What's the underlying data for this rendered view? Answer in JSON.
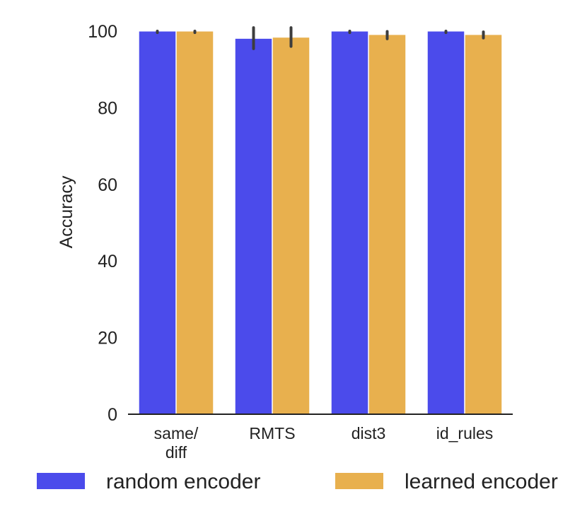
{
  "chart_data": {
    "type": "bar",
    "title": "",
    "xlabel": "",
    "ylabel": "Accuracy",
    "ylim": [
      0,
      100
    ],
    "yticks": [
      0,
      20,
      40,
      60,
      80,
      100
    ],
    "categories": [
      [
        "same/",
        "diff"
      ],
      [
        "RMTS"
      ],
      [
        "dist3"
      ],
      [
        "id_rules"
      ]
    ],
    "series": [
      {
        "name": "random encoder",
        "color": "#4b4beb",
        "values": [
          99.9,
          98.0,
          99.9,
          99.9
        ],
        "error_low": [
          99.6,
          95.4,
          99.6,
          99.6
        ],
        "error_high": [
          100.0,
          100.9,
          100.0,
          100.0
        ]
      },
      {
        "name": "learned encoder",
        "color": "#e8b04e",
        "values": [
          99.9,
          98.3,
          99.0,
          99.0
        ],
        "error_low": [
          99.6,
          96.0,
          98.0,
          98.2
        ],
        "error_high": [
          100.0,
          100.9,
          99.9,
          99.8
        ]
      }
    ],
    "grid": false,
    "legend_position": "bottom"
  }
}
